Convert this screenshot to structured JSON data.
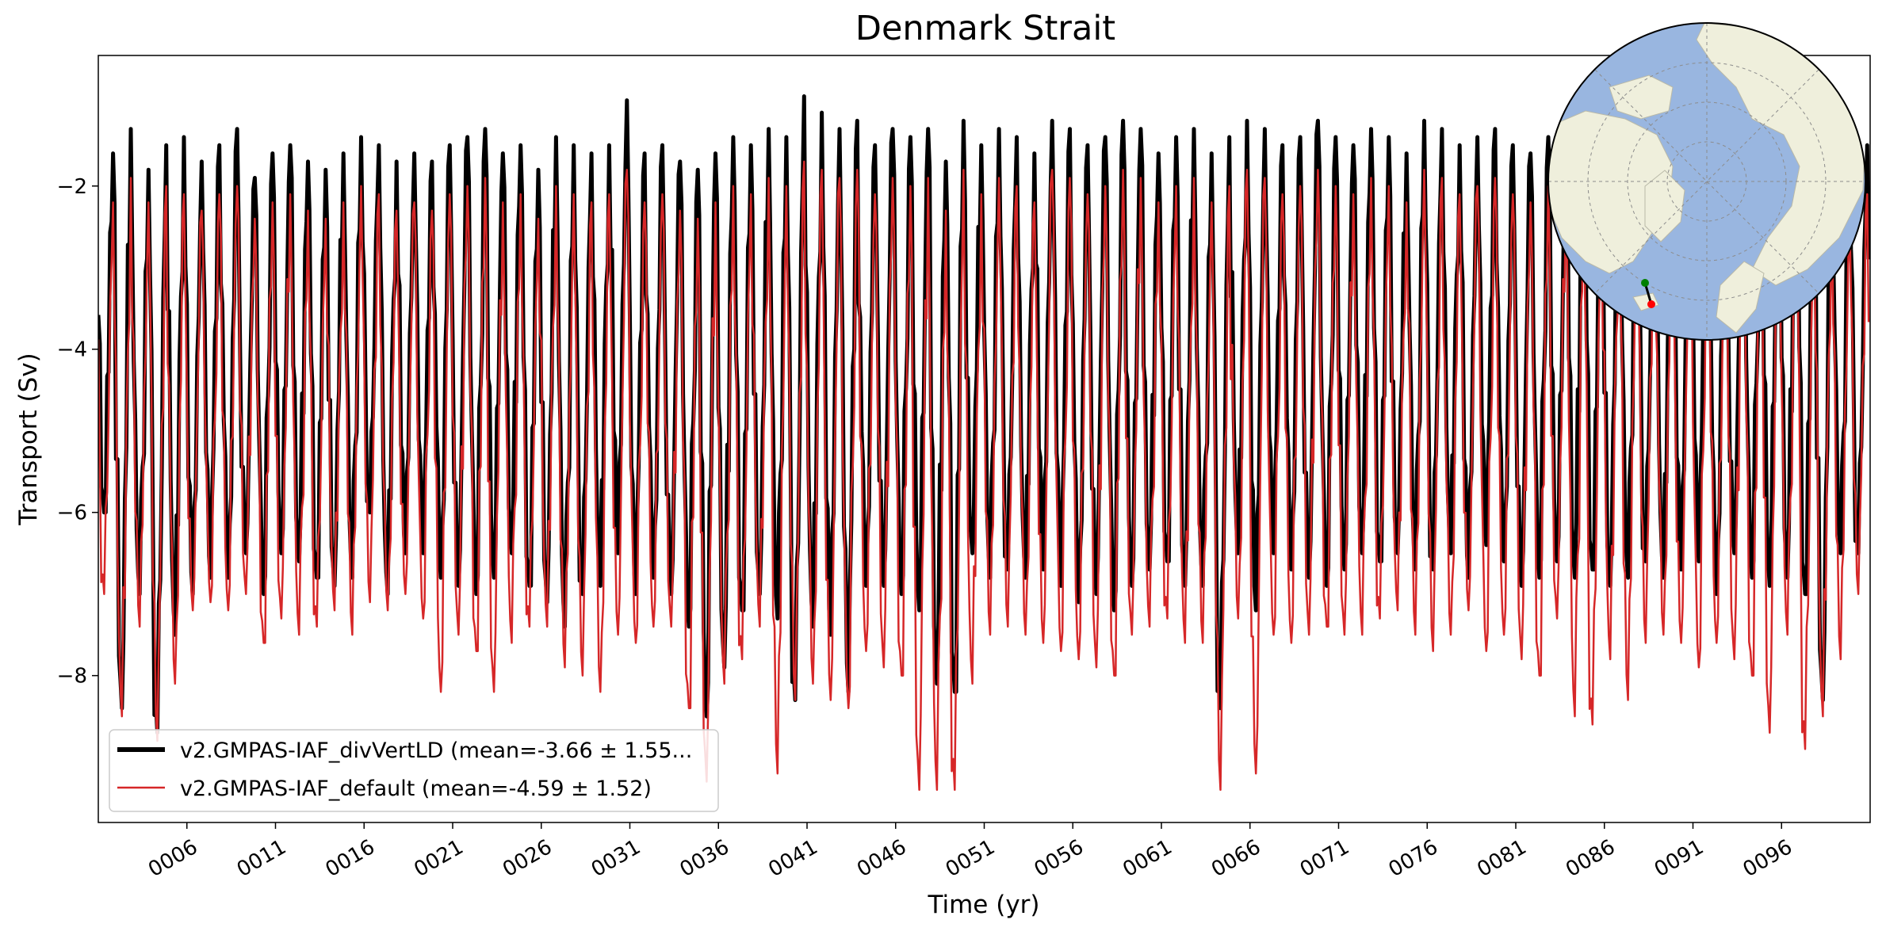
{
  "chart_data": {
    "type": "line",
    "title": "Denmark Strait",
    "xlabel": "Time (yr)",
    "ylabel": "Transport (Sv)",
    "xlim": [
      1,
      101
    ],
    "ylim": [
      -9.8,
      -0.4
    ],
    "yticks": [
      -2,
      -4,
      -6,
      -8
    ],
    "ytick_labels": [
      "−2",
      "−4",
      "−6",
      "−8"
    ],
    "xticks": [
      6,
      11,
      16,
      21,
      26,
      31,
      36,
      41,
      46,
      51,
      56,
      61,
      66,
      71,
      76,
      81,
      86,
      91,
      96
    ],
    "xtick_labels": [
      "0006",
      "0011",
      "0016",
      "0021",
      "0026",
      "0031",
      "0036",
      "0041",
      "0046",
      "0051",
      "0056",
      "0061",
      "0066",
      "0071",
      "0076",
      "0081",
      "0086",
      "0091",
      "0096"
    ],
    "grid": false,
    "legend_position": "lower-left",
    "series": [
      {
        "name": "v2.GMPAS-IAF_divVertLD (mean=-3.66 ± 1.55...",
        "color": "#000000",
        "mean": -3.66,
        "std": 1.55,
        "annual_peaks": [
          -1.6,
          -1.3,
          -1.8,
          -1.5,
          -1.4,
          -1.7,
          -1.5,
          -1.3,
          -1.9,
          -1.6,
          -1.5,
          -1.7,
          -1.8,
          -1.6,
          -1.4,
          -1.5,
          -1.7,
          -1.6,
          -1.7,
          -1.5,
          -1.4,
          -1.3,
          -1.6,
          -1.5,
          -1.8,
          -1.4,
          -1.5,
          -1.6,
          -1.5,
          -0.95,
          -1.6,
          -1.5,
          -1.7,
          -1.8,
          -1.6,
          -1.4,
          -1.5,
          -1.3,
          -1.4,
          -0.9,
          -1.1,
          -1.3,
          -1.2,
          -1.5,
          -1.3,
          -1.4,
          -1.3,
          -1.7,
          -1.2,
          -1.5,
          -1.3,
          -1.4,
          -1.6,
          -1.2,
          -1.3,
          -1.5,
          -1.4,
          -1.2,
          -1.3,
          -1.6,
          -1.4,
          -1.3,
          -1.6,
          -1.4,
          -1.2,
          -1.3,
          -1.5,
          -1.4,
          -1.2,
          -1.4,
          -1.5,
          -1.3,
          -1.4,
          -1.6,
          -1.2,
          -1.3,
          -1.5,
          -1.4,
          -1.3,
          -1.5,
          -1.6,
          -1.4,
          -1.5,
          -1.3,
          -1.6,
          -1.4,
          -1.5,
          -1.3,
          -1.5,
          -1.6,
          -1.4,
          -1.5,
          -1.6,
          -1.5,
          -1.4,
          -1.3,
          -1.5,
          -1.4,
          -1.6,
          -1.5
        ],
        "annual_troughs": [
          -6.0,
          -8.4,
          -7.0,
          -8.7,
          -7.5,
          -7.0,
          -6.8,
          -6.8,
          -6.5,
          -7.0,
          -6.5,
          -6.6,
          -6.8,
          -6.9,
          -6.8,
          -6.0,
          -7.0,
          -6.5,
          -6.5,
          -6.8,
          -6.9,
          -7.0,
          -6.8,
          -6.5,
          -6.9,
          -7.1,
          -7.4,
          -7.0,
          -6.9,
          -6.5,
          -7.0,
          -6.8,
          -7.0,
          -7.4,
          -8.5,
          -7.9,
          -7.2,
          -7.0,
          -7.3,
          -8.3,
          -7.4,
          -7.5,
          -8.2,
          -6.9,
          -6.9,
          -7.0,
          -7.2,
          -8.1,
          -8.2,
          -6.5,
          -6.8,
          -6.7,
          -6.8,
          -6.7,
          -6.9,
          -7.1,
          -7.0,
          -7.2,
          -6.9,
          -6.7,
          -6.6,
          -6.9,
          -6.9,
          -8.4,
          -6.5,
          -7.2,
          -6.5,
          -6.7,
          -6.8,
          -6.9,
          -6.7,
          -6.5,
          -6.6,
          -6.5,
          -6.7,
          -6.7,
          -6.5,
          -6.8,
          -6.4,
          -6.6,
          -6.9,
          -6.8,
          -6.6,
          -6.8,
          -6.7,
          -6.9,
          -6.8,
          -6.6,
          -6.8,
          -6.7,
          -6.6,
          -7.0,
          -6.5,
          -6.8,
          -6.9,
          -6.8,
          -7.0,
          -8.3,
          -6.5,
          -6.5
        ]
      },
      {
        "name": "v2.GMPAS-IAF_default (mean=-4.59 ± 1.52)",
        "color": "#d62728",
        "mean": -4.59,
        "std": 1.52,
        "annual_peaks": [
          -2.2,
          -1.9,
          -2.2,
          -2.0,
          -2.1,
          -2.3,
          -2.1,
          -2.0,
          -2.4,
          -2.2,
          -2.1,
          -2.3,
          -2.4,
          -2.2,
          -2.0,
          -2.1,
          -2.3,
          -2.2,
          -2.3,
          -2.1,
          -2.0,
          -1.9,
          -2.2,
          -2.1,
          -2.4,
          -2.0,
          -2.1,
          -2.2,
          -2.1,
          -1.8,
          -2.2,
          -2.1,
          -2.3,
          -2.4,
          -2.2,
          -2.0,
          -2.1,
          -1.9,
          -2.0,
          -1.7,
          -1.8,
          -1.9,
          -1.8,
          -2.1,
          -1.9,
          -2.0,
          -1.9,
          -2.3,
          -1.8,
          -2.1,
          -1.9,
          -2.0,
          -2.2,
          -1.8,
          -1.9,
          -2.1,
          -2.0,
          -1.8,
          -1.9,
          -2.2,
          -2.0,
          -1.9,
          -2.2,
          -2.0,
          -1.8,
          -1.9,
          -2.1,
          -2.0,
          -1.8,
          -2.0,
          -2.1,
          -1.9,
          -2.0,
          -2.2,
          -1.8,
          -1.9,
          -2.1,
          -2.0,
          -1.9,
          -2.1,
          -2.2,
          -2.0,
          -2.1,
          -1.9,
          -2.2,
          -2.0,
          -2.1,
          -1.9,
          -2.1,
          -2.2,
          -2.0,
          -2.1,
          -2.2,
          -2.1,
          -2.0,
          -1.9,
          -2.1,
          -2.0,
          -2.2,
          -2.1
        ],
        "annual_troughs": [
          -7.0,
          -8.5,
          -7.4,
          -8.8,
          -8.1,
          -7.2,
          -7.1,
          -7.2,
          -7.0,
          -7.6,
          -7.3,
          -7.5,
          -7.4,
          -7.2,
          -7.5,
          -7.1,
          -7.2,
          -7.0,
          -7.3,
          -8.2,
          -7.5,
          -7.7,
          -8.2,
          -7.6,
          -7.4,
          -7.4,
          -7.9,
          -8.0,
          -8.2,
          -7.5,
          -7.6,
          -7.4,
          -7.4,
          -8.4,
          -9.3,
          -8.1,
          -7.8,
          -7.4,
          -9.2,
          -8.3,
          -8.1,
          -8.3,
          -8.4,
          -7.7,
          -7.9,
          -8.0,
          -9.4,
          -9.4,
          -9.4,
          -8.1,
          -7.5,
          -7.4,
          -7.5,
          -7.6,
          -7.7,
          -7.8,
          -7.9,
          -8.0,
          -7.5,
          -7.4,
          -7.3,
          -7.6,
          -7.6,
          -9.4,
          -7.3,
          -9.2,
          -7.5,
          -7.6,
          -7.5,
          -7.4,
          -7.5,
          -7.5,
          -7.3,
          -7.2,
          -7.5,
          -7.7,
          -7.5,
          -7.2,
          -7.7,
          -7.5,
          -7.8,
          -8.0,
          -7.3,
          -8.5,
          -8.6,
          -7.8,
          -8.3,
          -7.6,
          -7.5,
          -7.6,
          -7.9,
          -7.6,
          -7.8,
          -8.0,
          -8.7,
          -7.5,
          -8.9,
          -8.5,
          -7.8,
          -7.0
        ]
      }
    ]
  },
  "inset_map": {
    "name": "Arctic polar stereographic inset",
    "ocean_color": "#99b6e0",
    "land_color": "#efefdc",
    "transect_color": "#000000",
    "start_marker_color": "#008000",
    "end_marker_color": "#ff0000"
  }
}
